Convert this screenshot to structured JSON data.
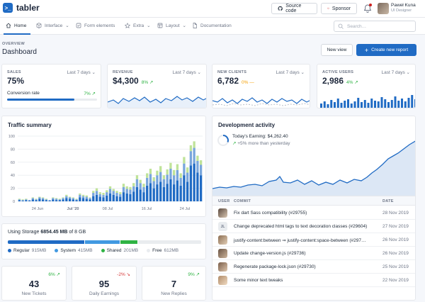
{
  "brand": {
    "name": "tabler"
  },
  "header": {
    "source_code_label": "Source code",
    "sponsor_label": "Sponsor",
    "user_name": "Paweł Kuna",
    "user_role": "UI Designer"
  },
  "nav": {
    "items": [
      {
        "label": "Home",
        "icon": "home-icon"
      },
      {
        "label": "Interface",
        "icon": "package-icon"
      },
      {
        "label": "Form elements",
        "icon": "checkbox-icon"
      },
      {
        "label": "Extra",
        "icon": "star-icon"
      },
      {
        "label": "Layout",
        "icon": "layout-icon"
      },
      {
        "label": "Documentation",
        "icon": "file-icon"
      }
    ],
    "search_placeholder": "Search…"
  },
  "page": {
    "pretitle": "OVERVIEW",
    "title": "Dashboard",
    "new_view_label": "New view",
    "create_report_label": "Create new report"
  },
  "kpis": {
    "sales": {
      "label": "SALES",
      "period": "Last 7 days",
      "value": "75%",
      "sub_label": "Conversion rate",
      "delta": "7%",
      "progress": 0.75
    },
    "revenue": {
      "label": "REVENUE",
      "period": "Last 7 days",
      "value": "$4,300",
      "delta": "8%"
    },
    "new_clients": {
      "label": "NEW CLIENTS",
      "period": "Last 7 days",
      "value": "6,782",
      "delta": "0%"
    },
    "active_users": {
      "label": "ACTIVE USERS",
      "period": "Last 7 days",
      "value": "2,986",
      "delta": "4%"
    }
  },
  "traffic": {
    "title": "Traffic summary"
  },
  "chart_data": {
    "type": "bar",
    "stacked": true,
    "ylim": [
      0,
      100
    ],
    "yticks": [
      "0",
      "20",
      "40",
      "60",
      "80",
      "100"
    ],
    "xtick_labels": [
      "24 Jun",
      "Jul '20",
      "08 Jul",
      "16 Jul",
      "24 Jul"
    ],
    "grid": true,
    "series": [
      {
        "color": "#206bc4",
        "values": [
          2,
          1,
          2,
          1,
          3,
          2,
          4,
          3,
          2,
          1,
          3,
          2,
          2,
          3,
          5,
          4,
          3,
          2,
          6,
          5,
          4,
          3,
          8,
          10,
          7,
          6,
          9,
          12,
          10,
          8,
          7,
          14,
          12,
          11,
          15,
          22,
          18,
          14,
          24,
          28,
          20,
          26,
          30,
          22,
          27,
          34,
          26,
          32,
          24,
          40,
          30,
          55,
          58,
          44,
          40
        ]
      },
      {
        "color": "#79a6dc",
        "values": [
          1,
          1,
          1,
          1,
          2,
          1,
          2,
          2,
          1,
          1,
          2,
          2,
          1,
          2,
          3,
          2,
          2,
          1,
          4,
          3,
          3,
          2,
          5,
          6,
          4,
          4,
          5,
          7,
          6,
          5,
          4,
          8,
          7,
          7,
          8,
          12,
          10,
          8,
          12,
          14,
          11,
          14,
          15,
          12,
          14,
          16,
          14,
          16,
          12,
          18,
          14,
          22,
          24,
          18,
          16
        ]
      },
      {
        "color": "#bfe399",
        "values": [
          1,
          1,
          1,
          0,
          1,
          1,
          1,
          1,
          1,
          0,
          1,
          1,
          1,
          1,
          2,
          1,
          1,
          1,
          2,
          2,
          2,
          1,
          3,
          4,
          3,
          3,
          3,
          4,
          3,
          3,
          3,
          5,
          4,
          4,
          5,
          6,
          5,
          5,
          7,
          8,
          6,
          7,
          9,
          6,
          8,
          9,
          8,
          9,
          7,
          10,
          8,
          9,
          10,
          8,
          7
        ]
      }
    ]
  },
  "dev": {
    "title": "Development activity",
    "earning": "Today's Earning: $4,262.40",
    "earning_delta": "+5% more than yesterday",
    "columns": {
      "user": "USER",
      "commit": "COMMIT",
      "date": "DATE"
    },
    "rows": [
      {
        "avatar": "",
        "commit": "Fix dart Sass compatibility (#29755)",
        "date": "28 Nov 2019"
      },
      {
        "avatar": "JL",
        "commit": "Change deprecated html tags to text decoration classes (#29604)",
        "date": "27 Nov 2019"
      },
      {
        "avatar": "",
        "commit": "justify-content:between ⇒ justify-content:space-between (#297…",
        "date": "26 Nov 2019"
      },
      {
        "avatar": "",
        "commit": "Update change-version.js (#29736)",
        "date": "26 Nov 2019"
      },
      {
        "avatar": "",
        "commit": "Regenerate package-lock.json (#29730)",
        "date": "25 Nov 2019"
      },
      {
        "avatar": "",
        "commit": "Some minor text tweaks",
        "date": "22 Nov 2019"
      }
    ]
  },
  "storage": {
    "prefix": "Using Storage ",
    "used": "6854.45 MB",
    "suffix": " of 8 GB",
    "segments": [
      {
        "label": "Regular",
        "size": "915MB",
        "color": "#206bc4",
        "fraction": 0.4
      },
      {
        "label": "System",
        "size": "415MB",
        "color": "#4299e1",
        "fraction": 0.18
      },
      {
        "label": "Shared",
        "size": "201MB",
        "color": "#2fb344",
        "fraction": 0.09
      },
      {
        "label": "Free",
        "size": "612MB",
        "color": "#e9ecef",
        "fraction": 0.33
      }
    ]
  },
  "stats": [
    {
      "value": "43",
      "label": "New Tickets",
      "delta": "6%",
      "trend": "up"
    },
    {
      "value": "95",
      "label": "Daily Earnings",
      "delta": "-2%",
      "trend": "down"
    },
    {
      "value": "7",
      "label": "New Replies",
      "delta": "9%",
      "trend": "up"
    }
  ]
}
